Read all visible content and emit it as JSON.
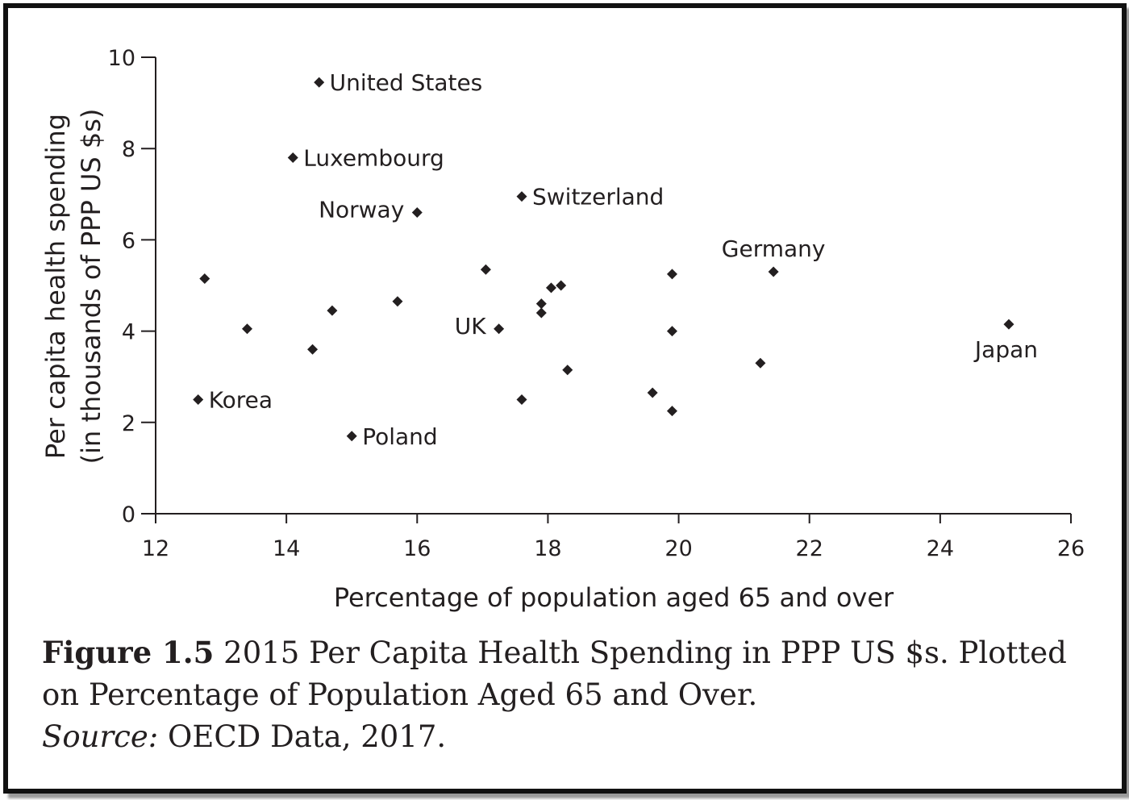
{
  "chart_data": {
    "type": "scatter",
    "xlabel": "Percentage of population aged 65 and over",
    "ylabel": "Per capita health spending",
    "ylabel2": "(in thousands of PPP US $s)",
    "xlim": [
      12,
      26
    ],
    "ylim": [
      0,
      10
    ],
    "x_ticks": [
      12,
      14,
      16,
      18,
      20,
      22,
      24,
      26
    ],
    "y_ticks": [
      0,
      2,
      4,
      6,
      8,
      10
    ],
    "grid": false,
    "points": [
      {
        "x": 14.5,
        "y": 9.45,
        "label": "United States",
        "label_pos": "right"
      },
      {
        "x": 14.1,
        "y": 7.8,
        "label": "Luxembourg",
        "label_pos": "right"
      },
      {
        "x": 16.0,
        "y": 6.6,
        "label": "Norway",
        "label_pos": "left"
      },
      {
        "x": 17.6,
        "y": 6.95,
        "label": "Switzerland",
        "label_pos": "right"
      },
      {
        "x": 21.45,
        "y": 5.3,
        "label": "Germany",
        "label_pos": "above"
      },
      {
        "x": 25.05,
        "y": 4.15,
        "label": "Japan",
        "label_pos": "below"
      },
      {
        "x": 17.25,
        "y": 4.05,
        "label": "UK",
        "label_pos": "left"
      },
      {
        "x": 12.65,
        "y": 2.5,
        "label": "Korea",
        "label_pos": "right"
      },
      {
        "x": 15.0,
        "y": 1.7,
        "label": "Poland",
        "label_pos": "right"
      },
      {
        "x": 12.75,
        "y": 5.15,
        "label": ""
      },
      {
        "x": 13.4,
        "y": 4.05,
        "label": ""
      },
      {
        "x": 14.4,
        "y": 3.6,
        "label": ""
      },
      {
        "x": 14.7,
        "y": 4.45,
        "label": ""
      },
      {
        "x": 15.7,
        "y": 4.65,
        "label": ""
      },
      {
        "x": 17.05,
        "y": 5.35,
        "label": ""
      },
      {
        "x": 17.6,
        "y": 2.5,
        "label": ""
      },
      {
        "x": 17.9,
        "y": 4.6,
        "label": ""
      },
      {
        "x": 17.9,
        "y": 4.4,
        "label": ""
      },
      {
        "x": 18.05,
        "y": 4.95,
        "label": ""
      },
      {
        "x": 18.2,
        "y": 5.0,
        "label": ""
      },
      {
        "x": 18.3,
        "y": 3.15,
        "label": ""
      },
      {
        "x": 19.6,
        "y": 2.65,
        "label": ""
      },
      {
        "x": 19.9,
        "y": 5.25,
        "label": ""
      },
      {
        "x": 19.9,
        "y": 4.0,
        "label": ""
      },
      {
        "x": 19.9,
        "y": 2.25,
        "label": ""
      },
      {
        "x": 21.25,
        "y": 3.3,
        "label": ""
      }
    ]
  },
  "caption": {
    "figure_label": "Figure 1.5",
    "text": " 2015 Per Capita Health Spending in PPP US $s. Plotted on Percentage of Population Aged 65 and Over.",
    "source_label": "Source:",
    "source_text": " OECD Data, 2017."
  }
}
